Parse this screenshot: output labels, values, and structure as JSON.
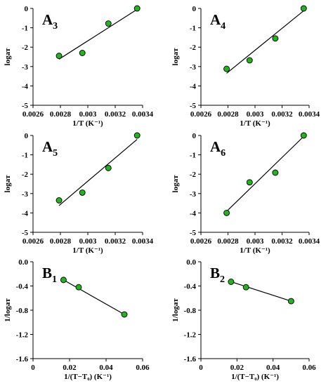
{
  "chart_data": [
    {
      "type": "scatter",
      "panel_label": "A",
      "panel_sub": "3",
      "xlabel": "1/T (K⁻¹)",
      "ylabel": "logaᴛ",
      "xlim": [
        0.0026,
        0.0034
      ],
      "ylim": [
        -5,
        0
      ],
      "xticks": [
        "0.0026",
        "0.0028",
        "0.003",
        "0.0032",
        "0.0034"
      ],
      "yticks": [
        "0",
        "-1",
        "-2",
        "-3",
        "-4",
        "-5"
      ],
      "x": [
        0.00279,
        0.00296,
        0.00315,
        0.00336
      ],
      "y": [
        -2.45,
        -2.3,
        -0.78,
        0.0
      ],
      "fit": {
        "x": [
          0.00279,
          0.00336
        ],
        "y": [
          -2.62,
          -0.05
        ]
      },
      "marker_color": "#22b31f"
    },
    {
      "type": "scatter",
      "panel_label": "A",
      "panel_sub": "4",
      "xlabel": "1/T (K⁻¹)",
      "ylabel": "logaᴛ",
      "xlim": [
        0.0026,
        0.0034
      ],
      "ylim": [
        -5,
        0
      ],
      "xticks": [
        "0.0026",
        "0.0028",
        "0.003",
        "0.0032",
        "0.0034"
      ],
      "yticks": [
        "0",
        "-1",
        "-2",
        "-3",
        "-4",
        "-5"
      ],
      "x": [
        0.00279,
        0.00296,
        0.00315,
        0.00336
      ],
      "y": [
        -3.12,
        -2.68,
        -1.55,
        0.0
      ],
      "fit": {
        "x": [
          0.00279,
          0.00336
        ],
        "y": [
          -3.35,
          -0.12
        ]
      },
      "marker_color": "#22b31f"
    },
    {
      "type": "scatter",
      "panel_label": "A",
      "panel_sub": "5",
      "xlabel": "1/T (K⁻¹)",
      "ylabel": "logaᴛ",
      "xlim": [
        0.0026,
        0.0034
      ],
      "ylim": [
        -5,
        0
      ],
      "xticks": [
        "0.0026",
        "0.0028",
        "0.003",
        "0.0032",
        "0.0034"
      ],
      "yticks": [
        "0",
        "-1",
        "-2",
        "-3",
        "-4",
        "-5"
      ],
      "x": [
        0.00279,
        0.00296,
        0.00315,
        0.00336
      ],
      "y": [
        -3.35,
        -2.95,
        -1.68,
        0.0
      ],
      "fit": {
        "x": [
          0.00279,
          0.00336
        ],
        "y": [
          -3.62,
          -0.2
        ]
      },
      "marker_color": "#22b31f"
    },
    {
      "type": "scatter",
      "panel_label": "A",
      "panel_sub": "6",
      "xlabel": "1/T (K⁻¹)",
      "ylabel": "logaᴛ",
      "xlim": [
        0.0026,
        0.0034
      ],
      "ylim": [
        -5,
        0
      ],
      "xticks": [
        "0.0026",
        "0.0028",
        "0.003",
        "0.0032",
        "0.0034"
      ],
      "yticks": [
        "0",
        "-1",
        "-2",
        "-3",
        "-4",
        "-5"
      ],
      "x": [
        0.00279,
        0.00296,
        0.00315,
        0.00336
      ],
      "y": [
        -4.0,
        -2.42,
        -1.92,
        0.0
      ],
      "fit": {
        "x": [
          0.00279,
          0.00336
        ],
        "y": [
          -3.92,
          -0.05
        ]
      },
      "marker_color": "#22b31f"
    },
    {
      "type": "scatter",
      "panel_label": "B",
      "panel_sub": "1",
      "xlabel": "1/(T−T₀) (K⁻¹)",
      "ylabel": "1/logaᴛ",
      "xlim": [
        0,
        0.06
      ],
      "ylim": [
        -1.6,
        0.0
      ],
      "xticks": [
        "0",
        "0.02",
        "0.04",
        "0.06"
      ],
      "yticks": [
        "0.0",
        "-0.4",
        "-0.8",
        "-1.2",
        "-1.6"
      ],
      "x": [
        0.0167,
        0.025,
        0.05
      ],
      "y": [
        -0.3,
        -0.42,
        -0.87
      ],
      "fit": {
        "x": [
          0.0167,
          0.05
        ],
        "y": [
          -0.3,
          -0.87
        ]
      },
      "marker_color": "#22b31f"
    },
    {
      "type": "scatter",
      "panel_label": "B",
      "panel_sub": "2",
      "xlabel": "1/(T−T₀) (K⁻¹)",
      "ylabel": "1/logaᴛ",
      "xlim": [
        0,
        0.06
      ],
      "ylim": [
        -1.6,
        0.0
      ],
      "xticks": [
        "0",
        "0.02",
        "0.04",
        "0.06"
      ],
      "yticks": [
        "0.0",
        "-0.4",
        "-0.8",
        "-1.2",
        "-1.6"
      ],
      "x": [
        0.0167,
        0.025,
        0.05
      ],
      "y": [
        -0.33,
        -0.42,
        -0.65
      ],
      "fit": {
        "x": [
          0.0167,
          0.05
        ],
        "y": [
          -0.33,
          -0.65
        ]
      },
      "marker_color": "#22b31f"
    }
  ]
}
